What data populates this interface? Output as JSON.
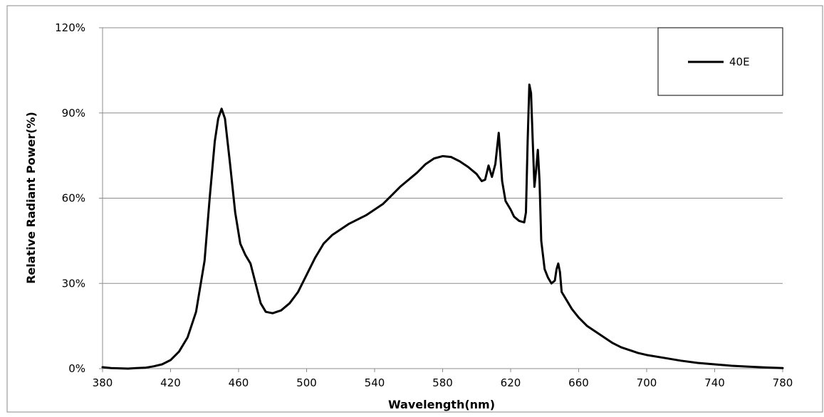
{
  "chart_data": {
    "type": "line",
    "title": "",
    "xlabel": "Wavelength(nm)",
    "ylabel": "Relative Radiant Power(%)",
    "xlim": [
      380,
      780
    ],
    "ylim": [
      0,
      120
    ],
    "x_ticks": [
      "380",
      "420",
      "460",
      "500",
      "540",
      "580",
      "620",
      "660",
      "700",
      "740",
      "780"
    ],
    "y_ticks": [
      "0%",
      "30%",
      "60%",
      "90%",
      "120%"
    ],
    "grid": "horizontal",
    "legend": "top-right",
    "series": [
      {
        "name": "40E",
        "color": "#000000",
        "points": [
          [
            380,
            0.5
          ],
          [
            385,
            0.2
          ],
          [
            390,
            0.1
          ],
          [
            395,
            0.0
          ],
          [
            400,
            0.2
          ],
          [
            405,
            0.3
          ],
          [
            410,
            0.8
          ],
          [
            415,
            1.5
          ],
          [
            420,
            3.0
          ],
          [
            425,
            6.0
          ],
          [
            430,
            11.0
          ],
          [
            435,
            20.0
          ],
          [
            440,
            38.0
          ],
          [
            443,
            60.0
          ],
          [
            446,
            80.0
          ],
          [
            448,
            88.0
          ],
          [
            450,
            91.5
          ],
          [
            452,
            88.0
          ],
          [
            455,
            72.0
          ],
          [
            458,
            55.0
          ],
          [
            461,
            44.0
          ],
          [
            464,
            40.0
          ],
          [
            467,
            37.0
          ],
          [
            470,
            30.0
          ],
          [
            473,
            23.0
          ],
          [
            476,
            20.0
          ],
          [
            480,
            19.5
          ],
          [
            485,
            20.5
          ],
          [
            490,
            23.0
          ],
          [
            495,
            27.0
          ],
          [
            500,
            33.0
          ],
          [
            505,
            39.0
          ],
          [
            510,
            44.0
          ],
          [
            515,
            47.0
          ],
          [
            520,
            49.0
          ],
          [
            525,
            51.0
          ],
          [
            530,
            52.5
          ],
          [
            535,
            54.0
          ],
          [
            540,
            56.0
          ],
          [
            545,
            58.0
          ],
          [
            550,
            61.0
          ],
          [
            555,
            64.0
          ],
          [
            560,
            66.5
          ],
          [
            565,
            69.0
          ],
          [
            570,
            72.0
          ],
          [
            575,
            74.0
          ],
          [
            580,
            74.8
          ],
          [
            585,
            74.5
          ],
          [
            590,
            73.0
          ],
          [
            595,
            71.0
          ],
          [
            600,
            68.5
          ],
          [
            603,
            66.0
          ],
          [
            605,
            66.5
          ],
          [
            607,
            71.5
          ],
          [
            609,
            67.5
          ],
          [
            611,
            72.0
          ],
          [
            613,
            83.0
          ],
          [
            615,
            66.0
          ],
          [
            617,
            59.0
          ],
          [
            620,
            56.0
          ],
          [
            622,
            53.5
          ],
          [
            625,
            52.0
          ],
          [
            628,
            51.5
          ],
          [
            629,
            55.0
          ],
          [
            630,
            80.0
          ],
          [
            631,
            100.0
          ],
          [
            632,
            97.0
          ],
          [
            633,
            80.0
          ],
          [
            634,
            64.0
          ],
          [
            635,
            70.0
          ],
          [
            636,
            77.0
          ],
          [
            637,
            66.0
          ],
          [
            638,
            45.0
          ],
          [
            640,
            35.0
          ],
          [
            642,
            32.0
          ],
          [
            644,
            30.0
          ],
          [
            646,
            31.0
          ],
          [
            647,
            35.0
          ],
          [
            648,
            37.0
          ],
          [
            649,
            34.0
          ],
          [
            650,
            27.0
          ],
          [
            653,
            24.0
          ],
          [
            656,
            21.0
          ],
          [
            660,
            18.0
          ],
          [
            665,
            15.0
          ],
          [
            670,
            13.0
          ],
          [
            675,
            11.0
          ],
          [
            680,
            9.0
          ],
          [
            685,
            7.5
          ],
          [
            690,
            6.5
          ],
          [
            695,
            5.5
          ],
          [
            700,
            4.8
          ],
          [
            710,
            3.8
          ],
          [
            720,
            2.8
          ],
          [
            730,
            2.0
          ],
          [
            740,
            1.5
          ],
          [
            750,
            1.0
          ],
          [
            760,
            0.7
          ],
          [
            770,
            0.4
          ],
          [
            780,
            0.2
          ]
        ]
      }
    ]
  }
}
